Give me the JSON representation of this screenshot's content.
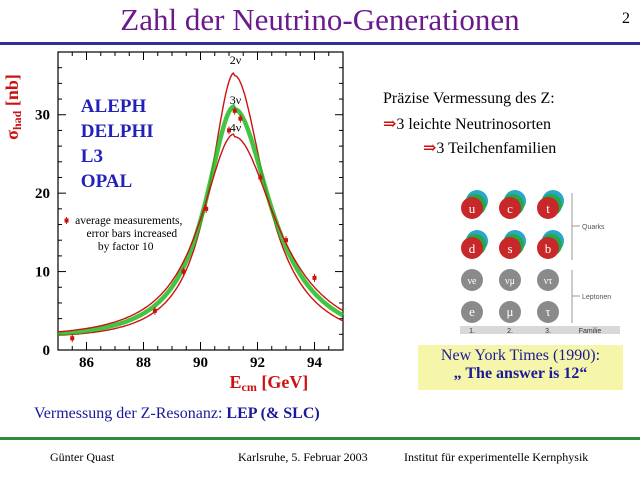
{
  "slide": {
    "title": "Zahl der Neutrino-Generationen",
    "page_number": "2"
  },
  "right_text": {
    "line1": "Präzise Vermessung des Z:",
    "line2": "3 leichte Neutrinosorten",
    "line3": "3 Teilchenfamilien",
    "arrow_glyph": "⇒"
  },
  "particle_table": {
    "quarks": [
      "u",
      "c",
      "t",
      "d",
      "s",
      "b"
    ],
    "leptons": [
      "νe",
      "νμ",
      "ντ",
      "e",
      "μ",
      "τ"
    ],
    "quarks_label": "Quarks",
    "leptons_label": "Leptonen",
    "families": [
      "1.",
      "2.",
      "3."
    ],
    "families_label": "Familie"
  },
  "nyt_box": {
    "line1": "New York Times (1990):",
    "line2": "„ The answer is 12“"
  },
  "caption": {
    "prefix": "Vermessung der Z-Resonanz: ",
    "bold": "LEP (& SLC)"
  },
  "footer": {
    "left": "Günter Quast",
    "center": "Karlsruhe,  5. Februar 2003",
    "right": "Institut für experimentelle Kernphysik"
  },
  "chart_data": {
    "type": "line",
    "xlabel": "E",
    "xlabel_sub": "cm",
    "xlabel_unit": "[GeV]",
    "ylabel": "σ",
    "ylabel_sub": "had",
    "ylabel_unit": "[nb]",
    "xlim": [
      85,
      95
    ],
    "ylim": [
      0,
      38
    ],
    "xticks": [
      86,
      88,
      90,
      92,
      94
    ],
    "yticks": [
      0,
      10,
      20,
      30
    ],
    "experiments": [
      "ALEPH",
      "DELPHI",
      "L3",
      "OPAL"
    ],
    "legend_text": [
      "average measurements,",
      "error bars increased",
      "by factor 10"
    ],
    "series": [
      {
        "name": "2ν",
        "peak_x": 91.19,
        "peak_y": 35.0,
        "width": 2.1,
        "color": "#cc1111"
      },
      {
        "name": "3ν",
        "peak_x": 91.19,
        "peak_y": 30.7,
        "width": 2.5,
        "color": "#22bb22"
      },
      {
        "name": "4ν",
        "peak_x": 91.19,
        "peak_y": 27.2,
        "width": 2.9,
        "color": "#cc1111"
      }
    ],
    "measurements": {
      "x": [
        85.5,
        88.4,
        89.4,
        90.2,
        91.0,
        91.2,
        91.4,
        92.1,
        93.0,
        94.0
      ],
      "y": [
        1.5,
        5.0,
        10.0,
        18.0,
        28.0,
        30.5,
        29.5,
        22.0,
        14.0,
        9.2
      ]
    }
  }
}
